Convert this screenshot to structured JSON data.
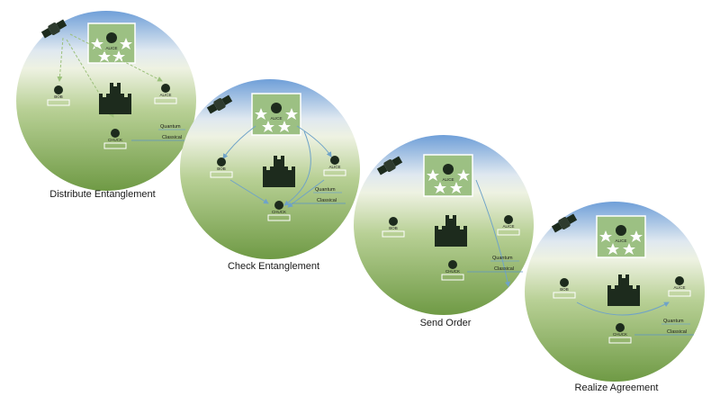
{
  "stages": [
    {
      "caption": "Distribute Entanglement",
      "commander": "ALICE",
      "left_general": "BOB",
      "right_general": "ALICE",
      "bottom_general": "CHUCK",
      "quantum_label": "Quantum",
      "classical_label": "Classical"
    },
    {
      "caption": "Check Entanglement",
      "commander": "ALICE",
      "left_general": "BOB",
      "right_general": "ALICE",
      "bottom_general": "CHUCK",
      "quantum_label": "Quantum",
      "classical_label": "Classical"
    },
    {
      "caption": "Send Order",
      "commander": "ALICE",
      "left_general": "BOB",
      "right_general": "ALICE",
      "bottom_general": "CHUCK",
      "quantum_label": "Quantum",
      "classical_label": "Classical"
    },
    {
      "caption": "Realize Agreement",
      "commander": "ALICE",
      "left_general": "BOB",
      "right_general": "ALICE",
      "bottom_general": "CHUCK",
      "quantum_label": "Quantum",
      "classical_label": "Classical"
    }
  ],
  "colors": {
    "sky": "#6f9fd8",
    "haze": "#eef2e2",
    "grass": "#7fa64f",
    "badge": "#9cc083",
    "arrow_quantum": "#6fa3c8",
    "arrow_classical": "#5b95c7",
    "icon": "#1d2b1d"
  },
  "icons": [
    "satellite-icon",
    "commander-star-badge",
    "castle-icon",
    "general-avatar-icon",
    "qubit-register-icon"
  ]
}
